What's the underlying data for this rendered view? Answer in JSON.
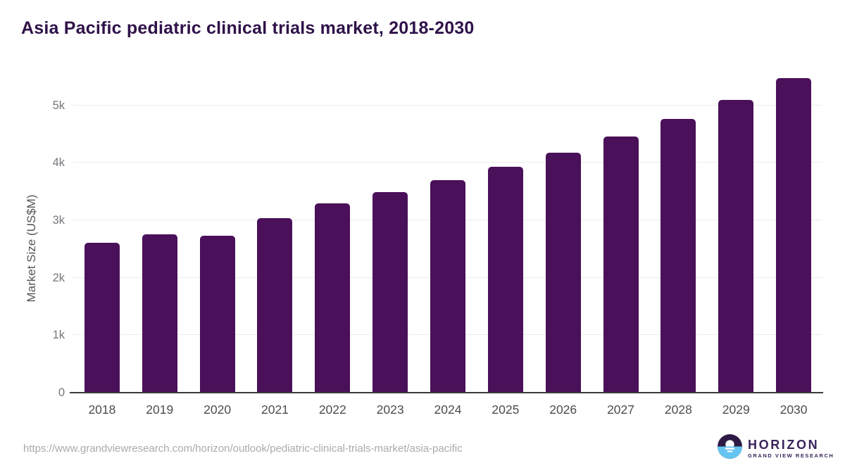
{
  "title": "Asia Pacific pediatric clinical trials market, 2018-2030",
  "chart_data": {
    "type": "bar",
    "categories": [
      "2018",
      "2019",
      "2020",
      "2021",
      "2022",
      "2023",
      "2024",
      "2025",
      "2026",
      "2027",
      "2028",
      "2029",
      "2030"
    ],
    "values": [
      2610,
      2750,
      2735,
      3040,
      3295,
      3490,
      3695,
      3935,
      4170,
      4455,
      4760,
      5100,
      5480
    ],
    "title": "Asia Pacific pediatric clinical trials market, 2018-2030",
    "xlabel": "",
    "ylabel": "Market Size (US$M)",
    "ylim": [
      0,
      5500
    ],
    "yticks": [
      {
        "value": 0,
        "label": "0"
      },
      {
        "value": 1000,
        "label": "1k"
      },
      {
        "value": 2000,
        "label": "2k"
      },
      {
        "value": 3000,
        "label": "3k"
      },
      {
        "value": 4000,
        "label": "4k"
      },
      {
        "value": 5000,
        "label": "5k"
      }
    ],
    "grid": "horizontal-on",
    "legend": "none",
    "bar_color": "#4a1059"
  },
  "colors": {
    "background": "#ffffff",
    "bar": "#4a1059",
    "title_text": "#2f1249",
    "y_tick_text": "#75767a",
    "x_tick_text": "#4c4d50",
    "axis_label_text": "#55565a",
    "gridline": "#ececec",
    "axis_line": "#3c3c3c",
    "url_text": "#a9aaad",
    "logo_dark": "#2d1b45",
    "logo_blue": "#66c5f0",
    "logo_text": "#3a255c"
  },
  "footer": {
    "source_url": "https://www.grandviewresearch.com/horizon/outlook/pediatric-clinical-trials-market/asia-pacific",
    "logo_title": "HORIZON",
    "logo_subtitle": "GRAND VIEW RESEARCH"
  }
}
